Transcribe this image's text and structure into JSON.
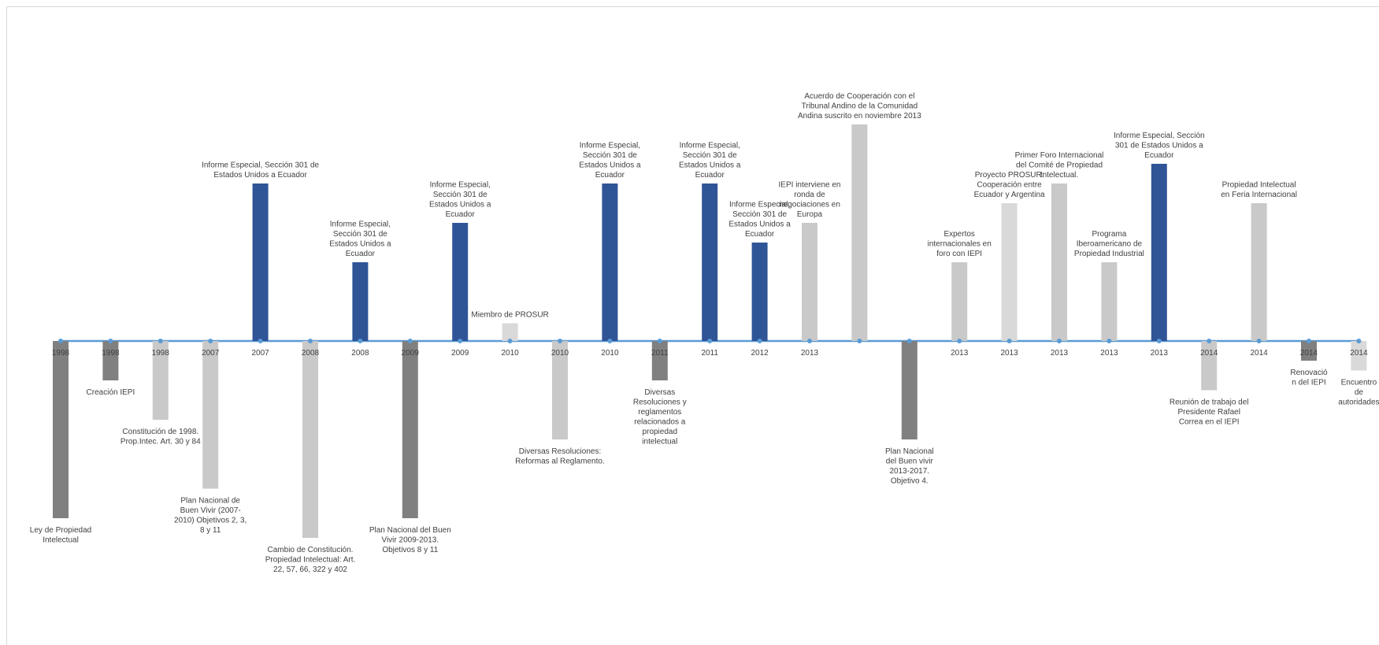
{
  "chart_data": {
    "type": "bar",
    "title": "",
    "xlabel": "",
    "ylabel": "",
    "grid": false,
    "ylim": [
      -11,
      11
    ],
    "colors": {
      "axis": "#5b9bd5",
      "blue": "#2f5597",
      "dark": "#808080",
      "light": "#c9c9c9",
      "lighter": "#d9d9d9"
    },
    "points": [
      {
        "year": "1998",
        "value": -9,
        "color": "dark",
        "label": [
          "Ley de Propiedad",
          "Intelectual"
        ]
      },
      {
        "year": "1998",
        "value": -2,
        "color": "dark",
        "label": [
          "Creación IEPI"
        ]
      },
      {
        "year": "1998",
        "value": -4,
        "color": "light",
        "label": [
          "Constitución de 1998.",
          "Prop.Intec. Art. 30 y 84"
        ]
      },
      {
        "year": "2007",
        "value": -7.5,
        "color": "light",
        "label": [
          "Plan Nacional de",
          "Buen Vivir (2007-",
          "2010) Objetivos 2, 3,",
          "8 y 11"
        ]
      },
      {
        "year": "2007",
        "value": 8,
        "color": "blue",
        "label": [
          "Informe Especial, Sección 301 de",
          "Estados Unidos a Ecuador"
        ]
      },
      {
        "year": "2008",
        "value": -10,
        "color": "light",
        "label": [
          "Cambio de Constitución.",
          "Propiedad Intelectual: Art.",
          "22, 57, 66, 322 y 402"
        ]
      },
      {
        "year": "2008",
        "value": 4,
        "color": "blue",
        "label": [
          "Informe Especial,",
          "Sección 301 de",
          "Estados Unidos a",
          "Ecuador"
        ]
      },
      {
        "year": "2009",
        "value": -9,
        "color": "dark",
        "label": [
          "Plan Nacional del Buen",
          "Vivir 2009-2013.",
          "Objetivos 8 y 11"
        ]
      },
      {
        "year": "2009",
        "value": 6,
        "color": "blue",
        "label": [
          "Informe Especial,",
          "Sección 301 de",
          "Estados Unidos a",
          "Ecuador"
        ]
      },
      {
        "year": "2010",
        "value": 0.9,
        "color": "lighter",
        "label": [
          "Miembro de PROSUR"
        ]
      },
      {
        "year": "2010",
        "value": -5,
        "color": "light",
        "label": [
          "Diversas Resoluciones:",
          "Reformas al Reglamento."
        ]
      },
      {
        "year": "2010",
        "value": 8,
        "color": "blue",
        "label": [
          "Informe Especial,",
          "Sección 301 de",
          "Estados Unidos a",
          "Ecuador"
        ]
      },
      {
        "year": "2011",
        "value": -2,
        "color": "dark",
        "label": [
          "Diversas",
          "Resoluciones y",
          "reglamentos",
          "relacionados a",
          "propiedad",
          "intelectual"
        ]
      },
      {
        "year": "2011",
        "value": 8,
        "color": "blue",
        "label": [
          "Informe Especial,",
          "Sección 301 de",
          "Estados Unidos a",
          "Ecuador"
        ]
      },
      {
        "year": "2012",
        "value": 5,
        "color": "blue",
        "label": [
          "Informe Especial,",
          "Sección 301 de",
          "Estados Unidos a",
          "Ecuador"
        ]
      },
      {
        "year": "2013",
        "value": 6,
        "color": "light",
        "label": [
          "IEPI interviene en",
          "ronda de",
          "negociaciones en",
          "Europa"
        ]
      },
      {
        "year": "",
        "value": 11,
        "color": "light",
        "label": [
          "Acuerdo de Cooperación con el",
          "Tribunal Andino de la Comunidad",
          "Andina suscrito en noviembre 2013"
        ]
      },
      {
        "year": "",
        "value": -5,
        "color": "dark",
        "label": [
          "Plan Nacional",
          "del Buen vivir",
          "2013-2017.",
          "Objetivo 4."
        ]
      },
      {
        "year": "2013",
        "value": 4,
        "color": "light",
        "label": [
          "Expertos",
          "internacionales en",
          "foro con IEPI"
        ]
      },
      {
        "year": "2013",
        "value": 7,
        "color": "lighter",
        "label": [
          "Proyecto PROSUR:",
          "Cooperación entre",
          "Ecuador y Argentina"
        ]
      },
      {
        "year": "2013",
        "value": 8,
        "color": "light",
        "label": [
          "Primer Foro Internacional",
          "del Comité de Propiedad",
          "Intelectual."
        ]
      },
      {
        "year": "2013",
        "value": 4,
        "color": "light",
        "label": [
          "Programa",
          "Iberoamericano de",
          "Propiedad Industrial"
        ]
      },
      {
        "year": "2013",
        "value": 9,
        "color": "blue",
        "label": [
          "Informe Especial, Sección",
          "301 de Estados Unidos a",
          "Ecuador"
        ]
      },
      {
        "year": "2014",
        "value": -2.5,
        "color": "light",
        "label": [
          "Reunión de trabajo del",
          "Presidente Rafael",
          "Correa en el IEPI"
        ]
      },
      {
        "year": "2014",
        "value": 7,
        "color": "light",
        "label": [
          "Propiedad Intelectual",
          "en Feria Internacional"
        ]
      },
      {
        "year": "2014",
        "value": -1,
        "color": "dark",
        "label": [
          "Renovació",
          "n del IEPI"
        ]
      },
      {
        "year": "2014",
        "value": -1.5,
        "color": "lighter",
        "label": [
          "Encuentro",
          "de",
          "autoridades"
        ]
      }
    ]
  }
}
